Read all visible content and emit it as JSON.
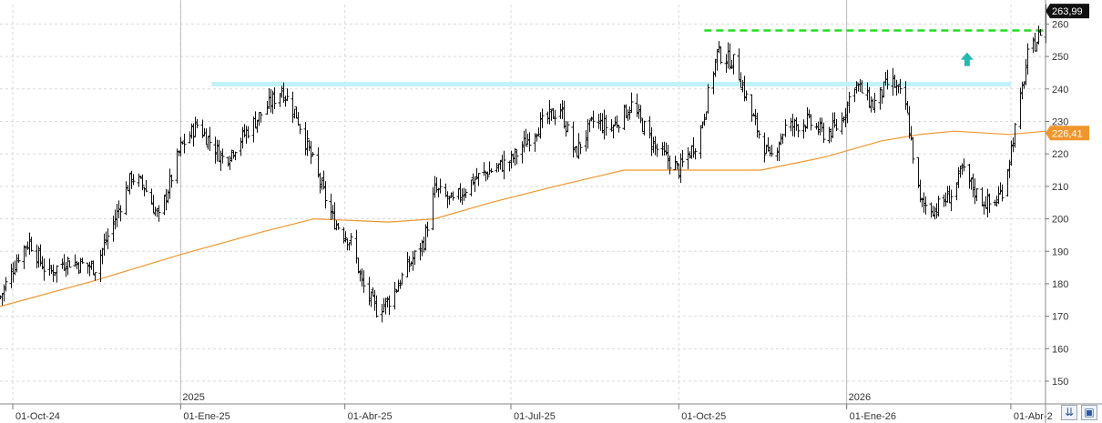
{
  "chart_data": {
    "type": "ohlc",
    "title": "",
    "xlabel": "",
    "ylabel": "",
    "ylim": [
      143,
      266
    ],
    "xlim": [
      "2024-09-24",
      "2026-04-20"
    ],
    "y_ticks": [
      150,
      160,
      170,
      180,
      190,
      200,
      210,
      220,
      230,
      240,
      250,
      260
    ],
    "x_ticks": [
      {
        "date": "2024-10-01",
        "label": "01-Oct-24"
      },
      {
        "date": "2025-01-01",
        "label": "01-Ene-25"
      },
      {
        "date": "2025-04-01",
        "label": "01-Abr-25"
      },
      {
        "date": "2025-07-01",
        "label": "01-Jul-25"
      },
      {
        "date": "2025-10-01",
        "label": "01-Oct-25"
      },
      {
        "date": "2026-01-01",
        "label": "01-Ene-26"
      },
      {
        "date": "2026-04-01",
        "label": "01-Abr-2"
      }
    ],
    "year_markers": [
      {
        "date": "2025-01-01",
        "label": "2025"
      },
      {
        "date": "2026-01-01",
        "label": "2026"
      }
    ],
    "grid": true,
    "price_path": [
      [
        "2024-09-24",
        176
      ],
      [
        "2024-10-05",
        190
      ],
      [
        "2024-10-10",
        193
      ],
      [
        "2024-10-20",
        183
      ],
      [
        "2024-10-30",
        187
      ],
      [
        "2024-11-15",
        185
      ],
      [
        "2024-11-28",
        203
      ],
      [
        "2024-12-05",
        213
      ],
      [
        "2024-12-12",
        210
      ],
      [
        "2024-12-20",
        200
      ],
      [
        "2025-01-01",
        222
      ],
      [
        "2025-01-10",
        229
      ],
      [
        "2025-01-25",
        218
      ],
      [
        "2025-02-05",
        226
      ],
      [
        "2025-02-15",
        233
      ],
      [
        "2025-02-25",
        240
      ],
      [
        "2025-03-05",
        232
      ],
      [
        "2025-03-15",
        216
      ],
      [
        "2025-03-25",
        200
      ],
      [
        "2025-04-05",
        192
      ],
      [
        "2025-04-10",
        180
      ],
      [
        "2025-04-18",
        172
      ],
      [
        "2025-04-25",
        175
      ],
      [
        "2025-05-05",
        185
      ],
      [
        "2025-05-14",
        193
      ],
      [
        "2025-05-20",
        209
      ],
      [
        "2025-05-30",
        205
      ],
      [
        "2025-06-10",
        212
      ],
      [
        "2025-06-20",
        215
      ],
      [
        "2025-07-01",
        218
      ],
      [
        "2025-07-15",
        228
      ],
      [
        "2025-07-28",
        234
      ],
      [
        "2025-08-05",
        220
      ],
      [
        "2025-08-15",
        230
      ],
      [
        "2025-08-25",
        228
      ],
      [
        "2025-09-05",
        235
      ],
      [
        "2025-09-18",
        222
      ],
      [
        "2025-10-01",
        215
      ],
      [
        "2025-10-12",
        225
      ],
      [
        "2025-10-22",
        251
      ],
      [
        "2025-11-01",
        248
      ],
      [
        "2025-11-10",
        232
      ],
      [
        "2025-11-20",
        218
      ],
      [
        "2025-11-28",
        228
      ],
      [
        "2025-12-10",
        230
      ],
      [
        "2025-12-20",
        226
      ],
      [
        "2025-12-28",
        229
      ],
      [
        "2026-01-05",
        242
      ],
      [
        "2026-01-15",
        235
      ],
      [
        "2026-01-25",
        243
      ],
      [
        "2026-02-02",
        235
      ],
      [
        "2026-02-06",
        220
      ],
      [
        "2026-02-10",
        205
      ],
      [
        "2026-02-18",
        203
      ],
      [
        "2026-02-28",
        208
      ],
      [
        "2026-03-05",
        215
      ],
      [
        "2026-03-15",
        206
      ],
      [
        "2026-03-22",
        204
      ],
      [
        "2026-03-28",
        210
      ],
      [
        "2026-04-01",
        222
      ],
      [
        "2026-04-05",
        233
      ],
      [
        "2026-04-10",
        250
      ],
      [
        "2026-04-16",
        256
      ],
      [
        "2026-04-20",
        263.99
      ]
    ],
    "moving_average": [
      [
        "2024-09-24",
        173
      ],
      [
        "2024-11-15",
        181
      ],
      [
        "2025-01-01",
        189
      ],
      [
        "2025-02-15",
        196
      ],
      [
        "2025-03-15",
        200
      ],
      [
        "2025-04-25",
        199
      ],
      [
        "2025-05-20",
        200
      ],
      [
        "2025-06-20",
        205
      ],
      [
        "2025-07-25",
        210
      ],
      [
        "2025-09-01",
        215
      ],
      [
        "2025-10-15",
        215
      ],
      [
        "2025-11-15",
        215
      ],
      [
        "2025-12-20",
        219
      ],
      [
        "2026-01-20",
        224
      ],
      [
        "2026-02-10",
        226
      ],
      [
        "2026-03-01",
        227
      ],
      [
        "2026-03-31",
        226
      ],
      [
        "2026-04-20",
        227
      ]
    ],
    "horizontal_lines": [
      {
        "y": 258,
        "from": "2025-10-15",
        "to": "2026-04-20",
        "color": "#22dd22",
        "style": "dashed"
      },
      {
        "y": 241.5,
        "from": "2025-01-18",
        "to": "2026-04-01",
        "color": "#bff3f7",
        "style": "solid"
      }
    ],
    "arrow_annotation": {
      "date": "2026-03-08",
      "y": 249,
      "color": "#25b8b0",
      "direction": "up"
    },
    "last_price_tag": {
      "value": "263,99",
      "color": "#111111"
    },
    "ma_value_tag": {
      "value": "226,41",
      "color": "#f0962e"
    },
    "colors": {
      "bars": "#111111",
      "moving_average": "#f0962e",
      "grid": "#d9d9d9",
      "background": "#ffffff"
    }
  },
  "footer": {
    "scroll_button_icon": "double-chevron-down-icon",
    "save_button_icon": "floppy-disk-icon"
  }
}
